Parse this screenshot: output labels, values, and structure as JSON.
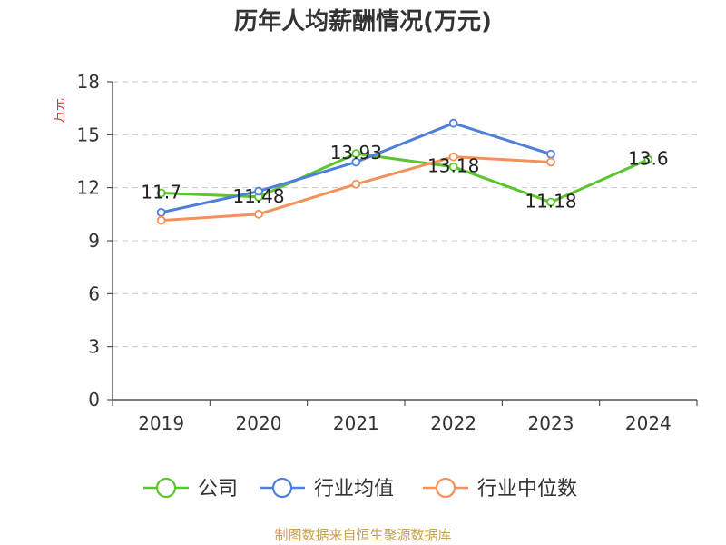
{
  "chart_data": {
    "type": "line",
    "title": "历年人均薪酬情况(万元)",
    "ylabel": "万元",
    "xlabel": "",
    "categories": [
      "2019",
      "2020",
      "2021",
      "2022",
      "2023",
      "2024"
    ],
    "ylim": [
      0,
      18
    ],
    "yticks": [
      0,
      3,
      6,
      9,
      12,
      15,
      18
    ],
    "grid": true,
    "legend_position": "bottom",
    "series": [
      {
        "name": "公司",
        "color": "#5cc42c",
        "values": [
          11.7,
          11.48,
          13.93,
          13.18,
          11.18,
          13.6
        ],
        "labels": [
          "11.7",
          "11.48",
          "13.93",
          "13.18",
          "11.18",
          "13.6"
        ]
      },
      {
        "name": "行业均值",
        "color": "#4e7fdc",
        "values": [
          10.6,
          11.8,
          13.45,
          15.65,
          13.9,
          null
        ]
      },
      {
        "name": "行业中位数",
        "color": "#f4915a",
        "values": [
          10.15,
          10.5,
          12.2,
          13.75,
          13.45,
          null
        ]
      }
    ]
  },
  "styles": {
    "ylabel_color": "#e03030",
    "source_color": "#c8a050",
    "grid_color": "#c8c8c8",
    "axis_color": "#333333"
  },
  "source_text": "制图数据来自恒生聚源数据库"
}
